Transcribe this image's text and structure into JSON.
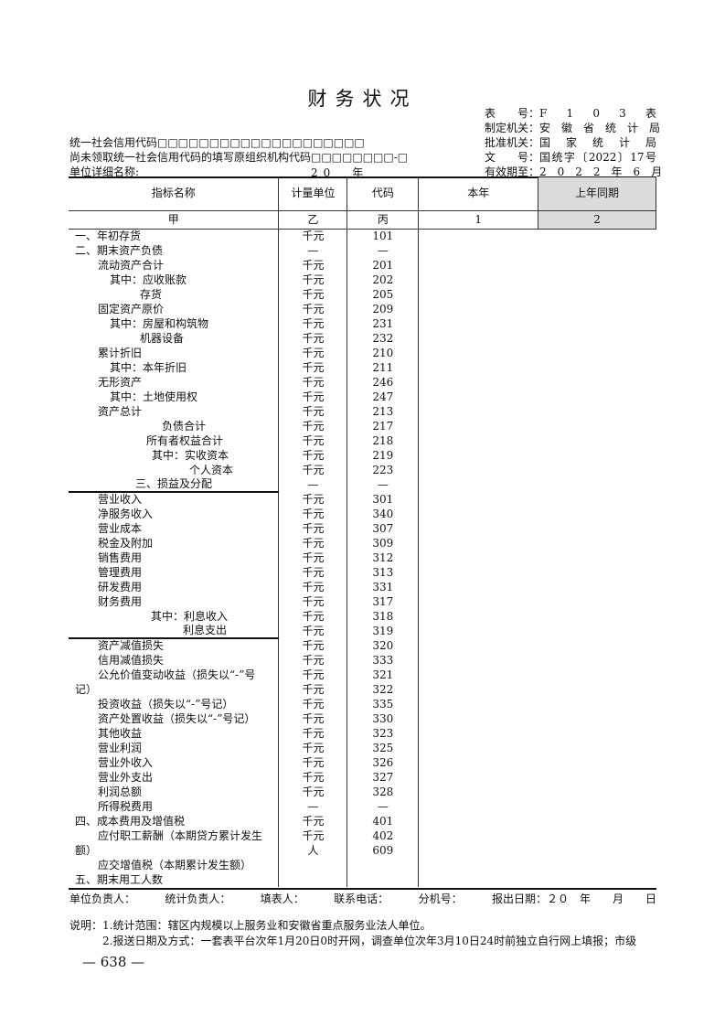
{
  "title": "财务状况",
  "form_info": [
    {
      "label": "表　　号：",
      "value": "F　1　0　3　表"
    },
    {
      "label": "制定机关：",
      "value": "安　徽　省　统　计　局"
    },
    {
      "label": "批准机关：",
      "value": "国　家　统　计　局"
    },
    {
      "label": "文　　号：",
      "value": "国统字〔2022〕17号"
    },
    {
      "label": "有效期至：",
      "value": "2　0　2　2　年　6　月"
    }
  ],
  "credit_code_label": "统一社会信用代码□□□□□□□□□□□□□□□□□□□□",
  "org_code_label": "尚未领取统一社会信用代码的填写原组织机构代码□□□□□□□□-□",
  "unit_name_label": "单位详细名称:",
  "year_label": "20　年",
  "headers": [
    "指标名称",
    "计量单位",
    "代码",
    "本年",
    "上年同期"
  ],
  "header_codes": [
    "甲",
    "乙",
    "丙",
    "1",
    "2"
  ],
  "rows": [
    [
      "一、年初存货",
      "千元",
      "101"
    ],
    [
      "二、期末资产负债",
      "—",
      "—"
    ],
    [
      "流动资产合计",
      "千元",
      "201"
    ],
    [
      "其中：应收账款",
      "千元",
      "202"
    ],
    [
      "存货",
      "千元",
      "205"
    ],
    [
      "固定资产原价",
      "千元",
      "209"
    ],
    [
      "其中：房屋和构筑物",
      "千元",
      "231"
    ],
    [
      "机器设备",
      "千元",
      "232"
    ],
    [
      "累计折旧",
      "千元",
      "210"
    ],
    [
      "其中：本年折旧",
      "千元",
      "211"
    ],
    [
      "无形资产",
      "千元",
      "246"
    ],
    [
      "其中：土地使用权",
      "千元",
      "247"
    ],
    [
      "资产总计",
      "千元",
      "213"
    ],
    [
      "负债合计",
      "千元",
      "217"
    ],
    [
      "所有者权益合计",
      "千元",
      "218"
    ],
    [
      "其中：实收资本",
      "千元",
      "219"
    ],
    [
      "个人资本",
      "千元",
      "223"
    ],
    [
      "三、损益及分配",
      "—",
      "—"
    ],
    [
      "营业收入",
      "千元",
      "301"
    ],
    [
      "净服务收入",
      "千元",
      "340"
    ],
    [
      "营业成本",
      "千元",
      "307"
    ],
    [
      "税金及附加",
      "千元",
      "309"
    ],
    [
      "销售费用",
      "千元",
      "312"
    ],
    [
      "管理费用",
      "千元",
      "313"
    ],
    [
      "研发费用",
      "千元",
      "331"
    ],
    [
      "财务费用",
      "千元",
      "317"
    ],
    [
      "其中：利息收入",
      "千元",
      "318"
    ],
    [
      "利息支出",
      "千元",
      "319"
    ],
    [
      "资产减值损失",
      "千元",
      "320"
    ],
    [
      "信用减值损失",
      "千元",
      "333"
    ],
    [
      "公允价值变动收益（损失以“-”号",
      "千元",
      "321"
    ],
    [
      "记）",
      "千元",
      "322"
    ],
    [
      "投资收益（损失以“-”号记）",
      "千元",
      "335"
    ],
    [
      "资产处置收益（损失以“-”号记）",
      "千元",
      "330"
    ],
    [
      "其他收益",
      "千元",
      "323"
    ],
    [
      "营业利润",
      "千元",
      "325"
    ],
    [
      "营业外收入",
      "千元",
      "326"
    ],
    [
      "营业外支出",
      "千元",
      "327"
    ],
    [
      "利润总额",
      "千元",
      "328"
    ],
    [
      "所得税费用",
      "—",
      "—"
    ],
    [
      "四、成本费用及增值税",
      "千元",
      "401"
    ],
    [
      "应付职工薪酬（本期贷方累计发生",
      "千元",
      "402"
    ],
    [
      "额）",
      "人",
      "609"
    ],
    [
      "应交增值税（本期累计发生额）",
      "",
      ""
    ],
    [
      "五、期末用工人数",
      "",
      ""
    ]
  ],
  "footer": [
    "单位负责人：",
    "统计负责人：",
    "填表人：",
    "联系电话：",
    "分机号：",
    "报出日期：２０　年　　月　　日"
  ],
  "notes": [
    "说明：1.统计范围：辖区内规模以上服务业和安徽省重点服务业法人单位。",
    "2.报送日期及方式：一套表平台次年1月20日0时开网，调查单位次年3月10日24时前独立自行网上填报；市级"
  ],
  "page_number": "— 638 —"
}
